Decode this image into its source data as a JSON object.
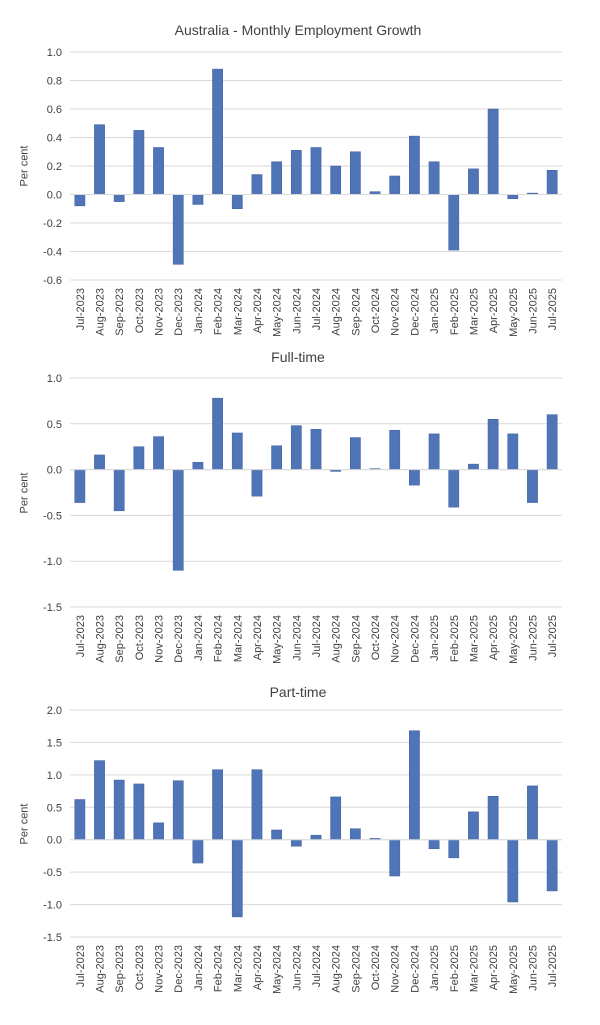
{
  "colors": {
    "bar": "#4f74b8",
    "bar_edge": "#3e5f9c",
    "grid": "#d9d9d9",
    "axis_text": "#404040"
  },
  "chart_data": [
    {
      "type": "bar",
      "title": "Australia - Monthly Employment Growth",
      "ylabel": "Per cent",
      "ylim": [
        -0.6,
        1.0
      ],
      "yticks": [
        "-0.6",
        "-0.4",
        "-0.2",
        "0.0",
        "0.2",
        "0.4",
        "0.6",
        "0.8",
        "1.0"
      ],
      "ytick_values": [
        -0.6,
        -0.4,
        -0.2,
        0.0,
        0.2,
        0.4,
        0.6,
        0.8,
        1.0
      ],
      "grid": true,
      "categories": [
        "Jul-2023",
        "Aug-2023",
        "Sep-2023",
        "Oct-2023",
        "Nov-2023",
        "Dec-2023",
        "Jan-2024",
        "Feb-2024",
        "Mar-2024",
        "Apr-2024",
        "May-2024",
        "Jun-2024",
        "Jul-2024",
        "Aug-2024",
        "Sep-2024",
        "Oct-2024",
        "Nov-2024",
        "Dec-2024",
        "Jan-2025",
        "Feb-2025",
        "Mar-2025",
        "Apr-2025",
        "May-2025",
        "Jun-2025",
        "Jul-2025"
      ],
      "values": [
        -0.08,
        0.49,
        -0.05,
        0.45,
        0.33,
        -0.49,
        -0.07,
        0.88,
        -0.1,
        0.14,
        0.23,
        0.31,
        0.33,
        0.2,
        0.3,
        0.02,
        0.13,
        0.41,
        0.23,
        -0.39,
        0.18,
        0.6,
        -0.03,
        0.01,
        0.17
      ]
    },
    {
      "type": "bar",
      "title": "Full-time",
      "ylabel": "Per cent",
      "ylim": [
        -1.5,
        1.0
      ],
      "yticks": [
        "-1.5",
        "-1.0",
        "-0.5",
        "0.0",
        "0.5",
        "1.0"
      ],
      "ytick_values": [
        -1.5,
        -1.0,
        -0.5,
        0.0,
        0.5,
        1.0
      ],
      "grid": true,
      "categories": [
        "Jul-2023",
        "Aug-2023",
        "Sep-2023",
        "Oct-2023",
        "Nov-2023",
        "Dec-2023",
        "Jan-2024",
        "Feb-2024",
        "Mar-2024",
        "Apr-2024",
        "May-2024",
        "Jun-2024",
        "Jul-2024",
        "Aug-2024",
        "Sep-2024",
        "Oct-2024",
        "Nov-2024",
        "Dec-2024",
        "Jan-2025",
        "Feb-2025",
        "Mar-2025",
        "Apr-2025",
        "May-2025",
        "Jun-2025",
        "Jul-2025"
      ],
      "values": [
        -0.36,
        0.16,
        -0.45,
        0.25,
        0.36,
        -1.1,
        0.08,
        0.78,
        0.4,
        -0.29,
        0.26,
        0.48,
        0.44,
        -0.02,
        0.35,
        0.01,
        0.43,
        -0.17,
        0.39,
        -0.41,
        0.06,
        0.55,
        0.39,
        -0.36,
        0.6
      ]
    },
    {
      "type": "bar",
      "title": "Part-time",
      "ylabel": "Per cent",
      "ylim": [
        -1.5,
        2.0
      ],
      "yticks": [
        "-1.5",
        "-1.0",
        "-0.5",
        "0.0",
        "0.5",
        "1.0",
        "1.5",
        "2.0"
      ],
      "ytick_values": [
        -1.5,
        -1.0,
        -0.5,
        0.0,
        0.5,
        1.0,
        1.5,
        2.0
      ],
      "grid": true,
      "categories": [
        "Jul-2023",
        "Aug-2023",
        "Sep-2023",
        "Oct-2023",
        "Nov-2023",
        "Dec-2023",
        "Jan-2024",
        "Feb-2024",
        "Mar-2024",
        "Apr-2024",
        "May-2024",
        "Jun-2024",
        "Jul-2024",
        "Aug-2024",
        "Sep-2024",
        "Oct-2024",
        "Nov-2024",
        "Dec-2024",
        "Jan-2025",
        "Feb-2025",
        "Mar-2025",
        "Apr-2025",
        "May-2025",
        "Jun-2025",
        "Jul-2025"
      ],
      "values": [
        0.62,
        1.22,
        0.92,
        0.86,
        0.26,
        0.91,
        -0.36,
        1.08,
        -1.19,
        1.08,
        0.15,
        -0.1,
        0.07,
        0.66,
        0.17,
        0.02,
        -0.56,
        1.68,
        -0.14,
        -0.28,
        0.43,
        0.67,
        -0.96,
        0.83,
        -0.79
      ]
    }
  ]
}
